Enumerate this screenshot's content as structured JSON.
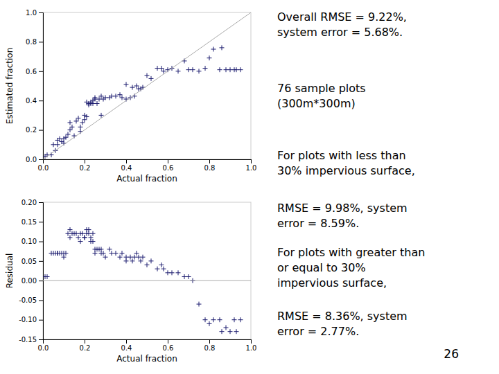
{
  "chart_data": [
    {
      "type": "scatter",
      "xlabel": "Actual fraction",
      "ylabel": "Estimated fraction",
      "xlim": [
        0.0,
        1.0
      ],
      "ylim": [
        0.0,
        1.0
      ],
      "xticks": [
        {
          "value": 0.0,
          "label": "0.0"
        },
        {
          "value": 0.2,
          "label": "0.2"
        },
        {
          "value": 0.4,
          "label": "0.4"
        },
        {
          "value": 0.6,
          "label": "0.6"
        },
        {
          "value": 0.8,
          "label": "0.8"
        },
        {
          "value": 1.0,
          "label": "1.0"
        }
      ],
      "yticks": [
        {
          "value": 0.0,
          "label": "0.0"
        },
        {
          "value": 0.2,
          "label": "0.2"
        },
        {
          "value": 0.4,
          "label": "0.4"
        },
        {
          "value": 0.6,
          "label": "0.6"
        },
        {
          "value": 0.8,
          "label": "0.8"
        },
        {
          "value": 1.0,
          "label": "1.0"
        }
      ],
      "grid": false,
      "series": [
        {
          "type": "scatter",
          "marker": "plus",
          "color": "#1a1a6e",
          "x": [
            0.01,
            0.02,
            0.04,
            0.05,
            0.06,
            0.07,
            0.07,
            0.08,
            0.09,
            0.1,
            0.1,
            0.11,
            0.12,
            0.13,
            0.13,
            0.14,
            0.15,
            0.16,
            0.17,
            0.18,
            0.18,
            0.19,
            0.2,
            0.2,
            0.21,
            0.21,
            0.22,
            0.22,
            0.23,
            0.23,
            0.24,
            0.24,
            0.25,
            0.25,
            0.26,
            0.27,
            0.28,
            0.28,
            0.29,
            0.3,
            0.32,
            0.33,
            0.35,
            0.37,
            0.38,
            0.4,
            0.4,
            0.42,
            0.43,
            0.44,
            0.45,
            0.46,
            0.47,
            0.48,
            0.5,
            0.52,
            0.55,
            0.57,
            0.58,
            0.6,
            0.62,
            0.65,
            0.68,
            0.7,
            0.72,
            0.75,
            0.78,
            0.8,
            0.82,
            0.85,
            0.86,
            0.88,
            0.9,
            0.92,
            0.93,
            0.95
          ],
          "values": [
            0.02,
            0.03,
            0.03,
            0.1,
            0.06,
            0.1,
            0.13,
            0.14,
            0.12,
            0.14,
            0.11,
            0.15,
            0.17,
            0.2,
            0.25,
            0.22,
            0.16,
            0.26,
            0.28,
            0.22,
            0.19,
            0.25,
            0.27,
            0.3,
            0.29,
            0.39,
            0.38,
            0.37,
            0.38,
            0.39,
            0.4,
            0.38,
            0.41,
            0.42,
            0.38,
            0.41,
            0.43,
            0.3,
            0.41,
            0.42,
            0.42,
            0.43,
            0.43,
            0.44,
            0.42,
            0.41,
            0.51,
            0.42,
            0.49,
            0.43,
            0.5,
            0.48,
            0.48,
            0.49,
            0.57,
            0.55,
            0.62,
            0.62,
            0.6,
            0.61,
            0.62,
            0.6,
            0.67,
            0.61,
            0.61,
            0.6,
            0.62,
            0.69,
            0.75,
            0.61,
            0.76,
            0.61,
            0.61,
            0.61,
            0.61,
            0.61
          ]
        },
        {
          "type": "line",
          "line_style": "solid",
          "color": "#aaaaaa",
          "x": [
            0,
            1
          ],
          "values": [
            0,
            1
          ]
        }
      ],
      "annotations": [
        "Overall RMSE = 9.22%,\nsystem error = 5.68%.",
        "76 sample plots\n(300m*300m)",
        "For plots with less than\n30% impervious surface,",
        "RMSE = 9.98%, system\nerror = 8.59%.",
        "For plots with greater than\nor equal to 30%\nimpervious surface,",
        "RMSE = 8.36%, system\nerror = 2.77%.",
        "26"
      ]
    },
    {
      "type": "scatter",
      "xlabel": "Actual fraction",
      "ylabel": "Residual",
      "xlim": [
        0.0,
        1.0
      ],
      "ylim": [
        -0.15,
        0.2
      ],
      "xticks": [
        {
          "value": 0.0,
          "label": "0.0"
        },
        {
          "value": 0.2,
          "label": "0.2"
        },
        {
          "value": 0.4,
          "label": "0.4"
        },
        {
          "value": 0.6,
          "label": "0.6"
        },
        {
          "value": 0.8,
          "label": "0.8"
        },
        {
          "value": 1.0,
          "label": "1.0"
        }
      ],
      "yticks": [
        {
          "value": -0.15,
          "label": "-0.15"
        },
        {
          "value": -0.1,
          "label": "-0.10"
        },
        {
          "value": -0.05,
          "label": "-0.05"
        },
        {
          "value": 0.0,
          "label": "0.00"
        },
        {
          "value": 0.05,
          "label": "0.05"
        },
        {
          "value": 0.1,
          "label": "0.10"
        },
        {
          "value": 0.15,
          "label": "0.15"
        },
        {
          "value": 0.2,
          "label": "0.20"
        }
      ],
      "grid": false,
      "series": [
        {
          "type": "scatter",
          "marker": "plus",
          "color": "#1a1a6e",
          "x": [
            0.01,
            0.02,
            0.04,
            0.05,
            0.06,
            0.07,
            0.07,
            0.08,
            0.09,
            0.1,
            0.1,
            0.11,
            0.12,
            0.13,
            0.13,
            0.14,
            0.15,
            0.16,
            0.17,
            0.18,
            0.18,
            0.19,
            0.2,
            0.2,
            0.21,
            0.21,
            0.22,
            0.22,
            0.23,
            0.23,
            0.24,
            0.24,
            0.25,
            0.25,
            0.26,
            0.27,
            0.28,
            0.28,
            0.29,
            0.3,
            0.32,
            0.33,
            0.35,
            0.37,
            0.38,
            0.4,
            0.4,
            0.42,
            0.43,
            0.44,
            0.45,
            0.46,
            0.47,
            0.48,
            0.5,
            0.52,
            0.55,
            0.57,
            0.58,
            0.6,
            0.62,
            0.65,
            0.68,
            0.7,
            0.72,
            0.75,
            0.78,
            0.8,
            0.82,
            0.85,
            0.86,
            0.88,
            0.9,
            0.92,
            0.93,
            0.95
          ],
          "values": [
            0.01,
            0.01,
            0.07,
            0.07,
            0.07,
            0.07,
            0.07,
            0.07,
            0.07,
            0.06,
            0.07,
            0.07,
            0.12,
            0.11,
            0.13,
            0.12,
            0.12,
            0.12,
            0.11,
            0.12,
            0.1,
            0.12,
            0.11,
            0.11,
            0.12,
            0.13,
            0.13,
            0.12,
            0.11,
            0.1,
            0.12,
            0.1,
            0.08,
            0.07,
            0.08,
            0.08,
            0.08,
            0.07,
            0.07,
            0.06,
            0.08,
            0.07,
            0.07,
            0.06,
            0.07,
            0.06,
            0.05,
            0.06,
            0.05,
            0.06,
            0.07,
            0.06,
            0.05,
            0.06,
            0.04,
            0.05,
            0.03,
            0.04,
            0.03,
            0.02,
            0.02,
            0.02,
            0.01,
            0.01,
            0.0,
            -0.06,
            -0.1,
            -0.11,
            -0.1,
            -0.1,
            -0.13,
            -0.12,
            -0.13,
            -0.1,
            -0.13,
            -0.1
          ]
        },
        {
          "type": "line",
          "line_style": "solid",
          "color": "#aaaaaa",
          "x": [
            0,
            1
          ],
          "values": [
            0,
            0
          ]
        }
      ]
    }
  ]
}
